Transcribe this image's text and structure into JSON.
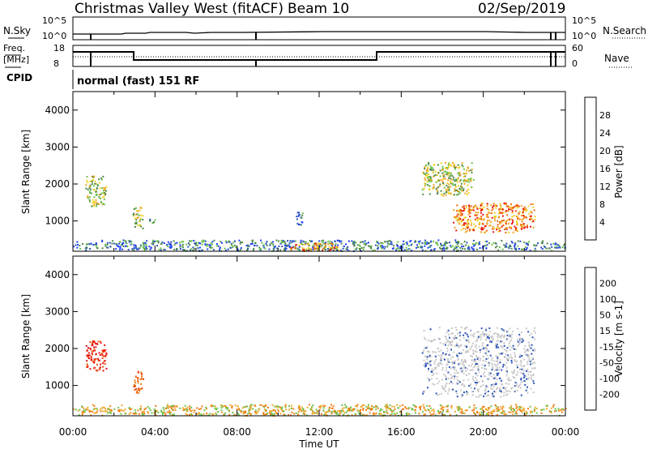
{
  "header": {
    "title": "Christmas Valley West (fitACF)",
    "beam": "Beam 10",
    "date": "02/Sep/2019"
  },
  "panels": {
    "nsky": {
      "left_label": "N.Sky",
      "left_top": "10^5",
      "left_bottom": "10^0",
      "right_label": "N.Search",
      "right_top": "10^5",
      "right_bottom": "10^0"
    },
    "freq": {
      "left_label_line1": "Freq.",
      "left_label_line2": "[MHz]",
      "left_top": "18",
      "left_bottom": "8",
      "right_label": "Nave",
      "right_top": "60",
      "right_bottom": "0"
    },
    "cpid": {
      "label": "CPID",
      "text": "normal (fast) 151 RF"
    }
  },
  "xaxis": {
    "ticks": [
      "00:00",
      "04:00",
      "08:00",
      "12:00",
      "16:00",
      "20:00",
      "00:00"
    ],
    "label": "Time UT"
  },
  "colors": {
    "power": [
      "#1f3fff",
      "#2b54b8",
      "#4e8a4a",
      "#6cc24a",
      "#f0d020",
      "#f0a020",
      "#f06a10",
      "#e81010"
    ],
    "velocity": [
      "#e81010",
      "#f05010",
      "#f07a10",
      "#f0a830",
      "#c8c8c8",
      "#6cc24a",
      "#4e8a4a",
      "#2b54b8",
      "#1f3fff"
    ]
  },
  "chart_data": [
    {
      "type": "heatmap",
      "title": "Power",
      "xlabel": "Time UT",
      "ylabel": "Slant Range [km]",
      "xlim": [
        0,
        24
      ],
      "ylim": [
        180,
        4500
      ],
      "yticks": [
        "1000",
        "2000",
        "3000",
        "4000"
      ],
      "colorbar_label": "Power [dB]",
      "colorbar_ticks": [
        "4",
        "8",
        "12",
        "16",
        "20",
        "24",
        "28"
      ],
      "echo_regions": [
        {
          "t": [
            0.6,
            1.6
          ],
          "r": [
            1400,
            2250
          ],
          "level": "medium"
        },
        {
          "t": [
            2.9,
            3.4
          ],
          "r": [
            800,
            1400
          ],
          "level": "medium"
        },
        {
          "t": [
            3.7,
            4.0
          ],
          "r": [
            900,
            1100
          ],
          "level": "low"
        },
        {
          "t": [
            0.0,
            24.0
          ],
          "r": [
            200,
            500
          ],
          "level": "low"
        },
        {
          "t": [
            10.5,
            13.0
          ],
          "r": [
            200,
            420
          ],
          "level": "high"
        },
        {
          "t": [
            10.8,
            11.2
          ],
          "r": [
            900,
            1300
          ],
          "level": "low"
        },
        {
          "t": [
            17.0,
            19.5
          ],
          "r": [
            1700,
            2600
          ],
          "level": "medium"
        },
        {
          "t": [
            18.5,
            22.5
          ],
          "r": [
            700,
            1500
          ],
          "level": "high"
        }
      ]
    },
    {
      "type": "heatmap",
      "title": "Velocity",
      "xlabel": "Time UT",
      "ylabel": "Slant Range [km]",
      "xlim": [
        0,
        24
      ],
      "ylim": [
        180,
        4500
      ],
      "yticks": [
        "1000",
        "2000",
        "3000",
        "4000"
      ],
      "colorbar_label": "Velocity [m s-1]",
      "colorbar_ticks": [
        "200",
        "100",
        "50",
        "15",
        "-15",
        "-50",
        "-100",
        "-200"
      ],
      "echo_regions": [
        {
          "t": [
            0.6,
            1.6
          ],
          "r": [
            1400,
            2250
          ],
          "velocity": "-200"
        },
        {
          "t": [
            2.9,
            3.4
          ],
          "r": [
            800,
            1400
          ],
          "velocity": "-100"
        },
        {
          "t": [
            0.0,
            24.0
          ],
          "r": [
            200,
            500
          ],
          "velocity": "-50"
        },
        {
          "t": [
            17.0,
            22.5
          ],
          "r": [
            700,
            2600
          ],
          "velocity": "0"
        }
      ]
    }
  ]
}
